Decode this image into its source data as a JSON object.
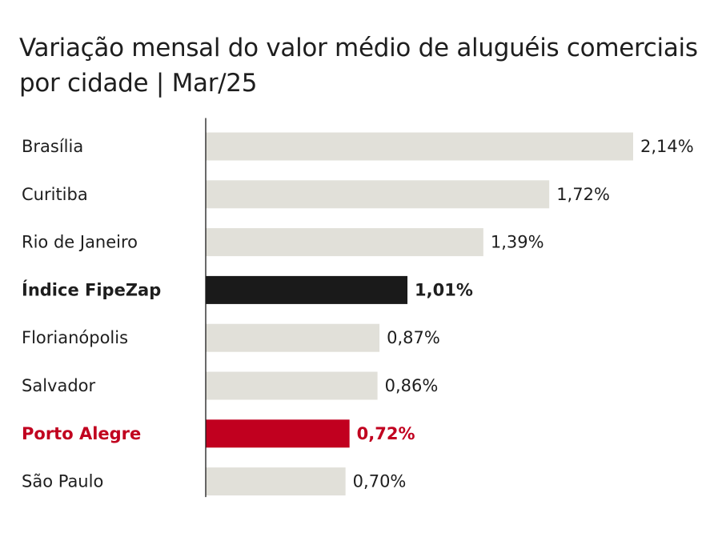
{
  "chart_data": {
    "type": "bar",
    "orientation": "horizontal",
    "title": "Variação mensal do valor médio de aluguéis comerciais por cidade | Mar/25",
    "categories": [
      "Brasília",
      "Curitiba",
      "Rio de Janeiro",
      "Índice FipeZap",
      "Florianópolis",
      "Salvador",
      "Porto Alegre",
      "São Paulo"
    ],
    "values": [
      2.14,
      1.72,
      1.39,
      1.01,
      0.87,
      0.86,
      0.72,
      0.7
    ],
    "value_labels": [
      "2,14%",
      "1,72%",
      "1,39%",
      "1,01%",
      "0,87%",
      "0,86%",
      "0,72%",
      "0,70%"
    ],
    "highlight": [
      false,
      false,
      false,
      "index",
      false,
      false,
      "featured",
      false
    ],
    "xlim": [
      0,
      2.14
    ],
    "grid": false,
    "legend": "none",
    "colors": {
      "default_bar": "#e1e0d9",
      "index_bar": "#1a1a1a",
      "featured_bar": "#c1001f",
      "text": "#1e1e1e",
      "axis": "#1a1a1a"
    }
  }
}
